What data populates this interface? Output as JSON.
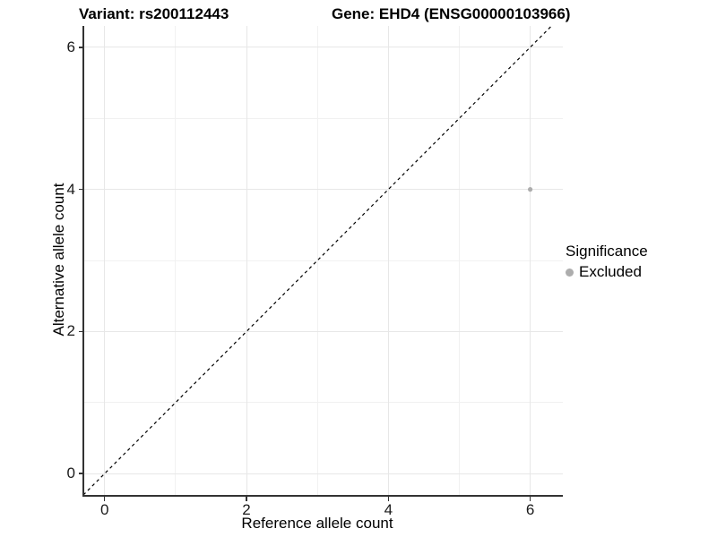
{
  "titles": {
    "variant": "Variant: rs200112443",
    "gene": "Gene: EHD4 (ENSG00000103966)"
  },
  "legend": {
    "title": "Significance",
    "items": [
      {
        "label": "Excluded",
        "color": "#adadad"
      }
    ]
  },
  "chart_data": {
    "type": "scatter",
    "title": "Variant: rs200112443    Gene: EHD4 (ENSG00000103966)",
    "xlabel": "Reference allele count",
    "ylabel": "Alternative allele count",
    "xlim": [
      -0.3,
      6.46
    ],
    "ylim": [
      -0.3,
      6.3
    ],
    "x_ticks": [
      "0",
      "2",
      "4",
      "6"
    ],
    "y_ticks": [
      "0",
      "2",
      "4",
      "6"
    ],
    "x_tick_values": [
      0,
      2,
      4,
      6
    ],
    "y_tick_values": [
      0,
      2,
      4,
      6
    ],
    "grid": {
      "major_x": [
        0,
        2,
        4,
        6
      ],
      "major_y": [
        0,
        2,
        4,
        6
      ],
      "minor_x": [
        1,
        3,
        5
      ],
      "minor_y": [
        1,
        3,
        5
      ]
    },
    "series": [
      {
        "name": "Excluded",
        "color": "#adadad",
        "points": [
          {
            "x": 6,
            "y": 4
          }
        ]
      }
    ],
    "reference_line": {
      "slope": 1,
      "intercept": 0,
      "style": "dashed",
      "color": "#000000"
    },
    "legend_position": "right",
    "colors": {
      "background": "#ffffff",
      "grid_major": "#e7e7e7",
      "grid_minor": "#f1f1f1",
      "axis_line": "#333333",
      "tick_text": "#1a1a1a"
    }
  }
}
